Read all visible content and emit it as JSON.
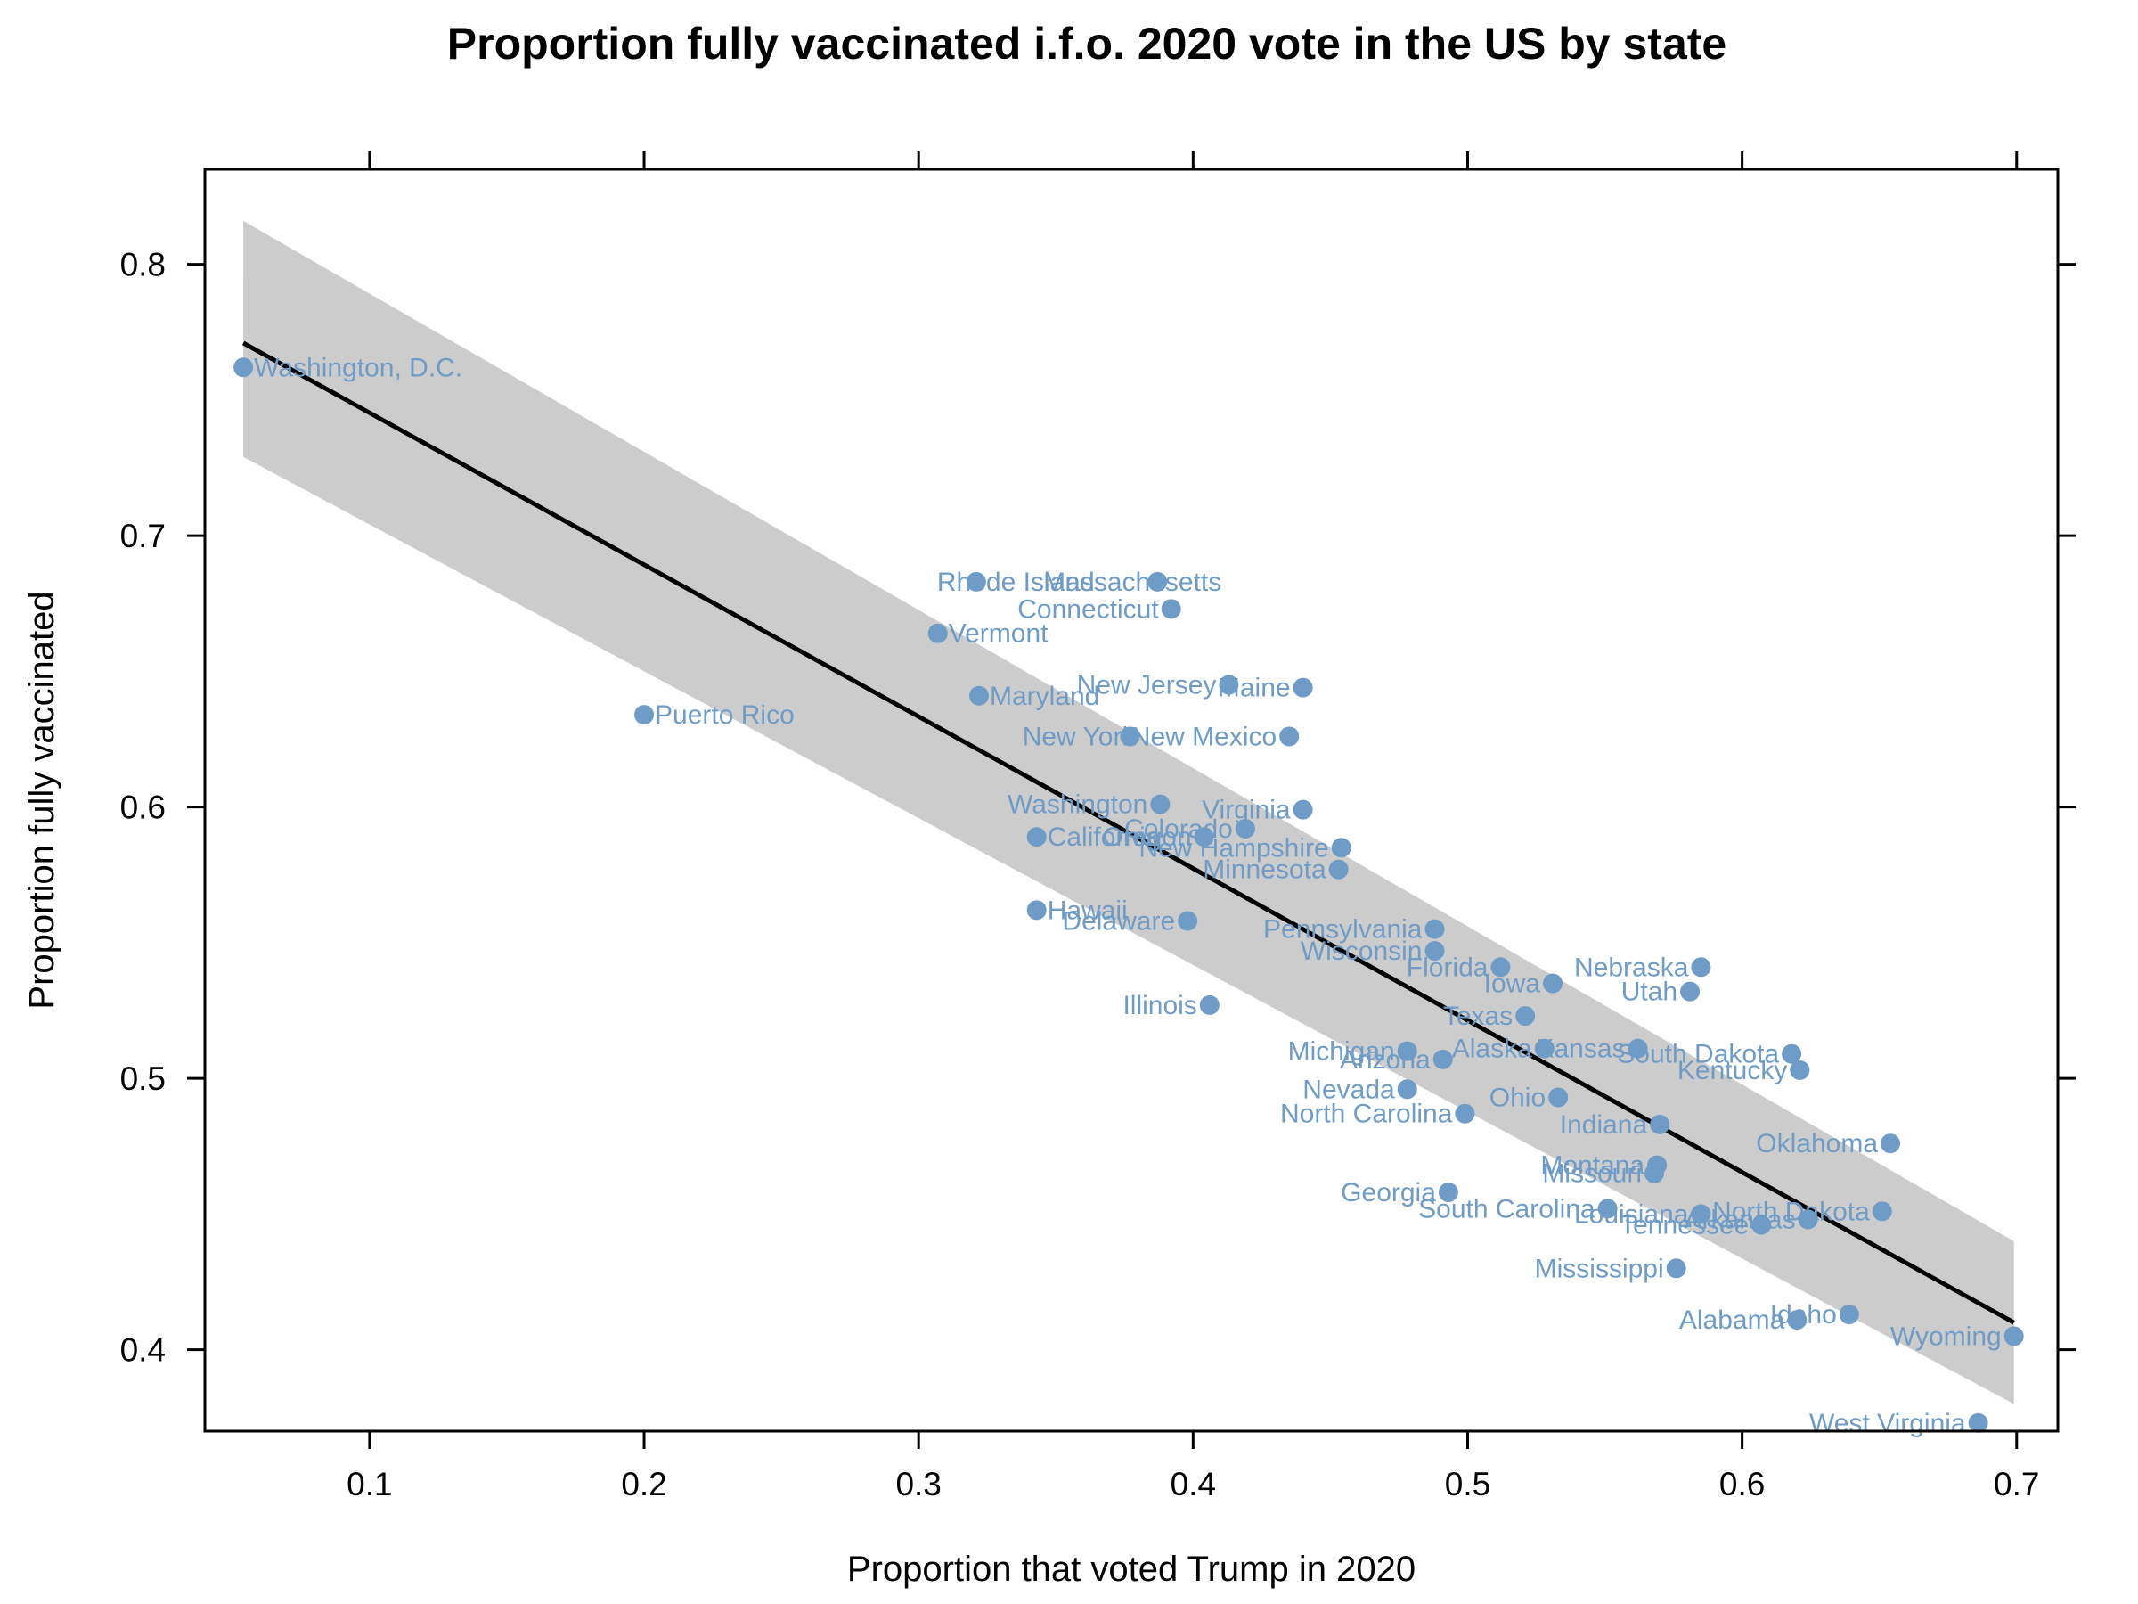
{
  "chart_data": {
    "type": "scatter",
    "title": "Proportion fully vaccinated i.f.o. 2020 vote in the US by state",
    "xlabel": "Proportion that voted Trump in 2020",
    "ylabel": "Proportion fully vaccinated",
    "xlim": [
      0.04,
      0.715
    ],
    "ylim": [
      0.37,
      0.835
    ],
    "x_ticks": [
      "0.1",
      "0.2",
      "0.3",
      "0.4",
      "0.5",
      "0.6",
      "0.7"
    ],
    "y_ticks": [
      "0.4",
      "0.5",
      "0.6",
      "0.7",
      "0.8"
    ],
    "grid": false,
    "legend": "none",
    "point_color": "#6f9cc7",
    "label_color": "#6f9cc7",
    "band_color": "#cccccc",
    "line_color": "#000000",
    "regression_line": {
      "x": [
        0.054,
        0.699
      ],
      "y": [
        0.771,
        0.41
      ]
    },
    "confidence_band": {
      "x": [
        0.054,
        0.699
      ],
      "upper": [
        0.816,
        0.44
      ],
      "lower": [
        0.729,
        0.38
      ]
    },
    "points": [
      {
        "name": "Washington, D.C.",
        "x": 0.054,
        "y": 0.762,
        "anchor": "start",
        "dx": 12,
        "dy": 0
      },
      {
        "name": "Puerto Rico",
        "x": 0.2,
        "y": 0.634,
        "anchor": "start",
        "dx": 12,
        "dy": 0
      },
      {
        "name": "Vermont",
        "x": 0.307,
        "y": 0.664,
        "anchor": "start",
        "dx": 12,
        "dy": 0
      },
      {
        "name": "Rhode Island",
        "x": 0.321,
        "y": 0.683,
        "anchor": "start",
        "dx": -44,
        "dy": 0
      },
      {
        "name": "Massachusetts",
        "x": 0.387,
        "y": 0.683,
        "anchor": "end",
        "dx": 72,
        "dy": 0
      },
      {
        "name": "Connecticut",
        "x": 0.392,
        "y": 0.673,
        "anchor": "end",
        "dx": -14,
        "dy": 0
      },
      {
        "name": "Maryland",
        "x": 0.322,
        "y": 0.641,
        "anchor": "start",
        "dx": 12,
        "dy": 0
      },
      {
        "name": "New Jersey",
        "x": 0.413,
        "y": 0.645,
        "anchor": "end",
        "dx": -14,
        "dy": 0
      },
      {
        "name": "Maine",
        "x": 0.44,
        "y": 0.644,
        "anchor": "end",
        "dx": -14,
        "dy": 0
      },
      {
        "name": "New York",
        "x": 0.377,
        "y": 0.626,
        "anchor": "end",
        "dx": 6,
        "dy": 0
      },
      {
        "name": "New Mexico",
        "x": 0.435,
        "y": 0.626,
        "anchor": "end",
        "dx": -14,
        "dy": 0
      },
      {
        "name": "Washington",
        "x": 0.388,
        "y": 0.601,
        "anchor": "end",
        "dx": -14,
        "dy": 0
      },
      {
        "name": "Virginia",
        "x": 0.44,
        "y": 0.599,
        "anchor": "end",
        "dx": -14,
        "dy": 0
      },
      {
        "name": "Colorado",
        "x": 0.419,
        "y": 0.592,
        "anchor": "end",
        "dx": -14,
        "dy": 0
      },
      {
        "name": "California",
        "x": 0.343,
        "y": 0.589,
        "anchor": "start",
        "dx": 12,
        "dy": 0
      },
      {
        "name": "Oregon",
        "x": 0.404,
        "y": 0.589,
        "anchor": "end",
        "dx": -14,
        "dy": 0
      },
      {
        "name": "New Hampshire",
        "x": 0.454,
        "y": 0.585,
        "anchor": "end",
        "dx": -14,
        "dy": 0
      },
      {
        "name": "Minnesota",
        "x": 0.453,
        "y": 0.577,
        "anchor": "end",
        "dx": -14,
        "dy": 0
      },
      {
        "name": "Hawaii",
        "x": 0.343,
        "y": 0.562,
        "anchor": "start",
        "dx": 12,
        "dy": 0
      },
      {
        "name": "Delaware",
        "x": 0.398,
        "y": 0.558,
        "anchor": "end",
        "dx": -14,
        "dy": 0
      },
      {
        "name": "Pennsylvania",
        "x": 0.488,
        "y": 0.555,
        "anchor": "end",
        "dx": -14,
        "dy": 0
      },
      {
        "name": "Wisconsin",
        "x": 0.488,
        "y": 0.547,
        "anchor": "end",
        "dx": -14,
        "dy": 0
      },
      {
        "name": "Florida",
        "x": 0.512,
        "y": 0.541,
        "anchor": "end",
        "dx": -14,
        "dy": 0
      },
      {
        "name": "Nebraska",
        "x": 0.585,
        "y": 0.541,
        "anchor": "end",
        "dx": -14,
        "dy": 0
      },
      {
        "name": "Iowa",
        "x": 0.531,
        "y": 0.535,
        "anchor": "end",
        "dx": -14,
        "dy": 0
      },
      {
        "name": "Utah",
        "x": 0.581,
        "y": 0.532,
        "anchor": "end",
        "dx": -14,
        "dy": 0
      },
      {
        "name": "Illinois",
        "x": 0.406,
        "y": 0.527,
        "anchor": "end",
        "dx": -14,
        "dy": 0
      },
      {
        "name": "Texas",
        "x": 0.521,
        "y": 0.523,
        "anchor": "end",
        "dx": -14,
        "dy": 0
      },
      {
        "name": "Michigan",
        "x": 0.478,
        "y": 0.51,
        "anchor": "end",
        "dx": -14,
        "dy": 0
      },
      {
        "name": "Alaska",
        "x": 0.528,
        "y": 0.511,
        "anchor": "end",
        "dx": -14,
        "dy": 0
      },
      {
        "name": "Kansas",
        "x": 0.562,
        "y": 0.511,
        "anchor": "end",
        "dx": -14,
        "dy": 0
      },
      {
        "name": "South Dakota",
        "x": 0.618,
        "y": 0.509,
        "anchor": "end",
        "dx": -14,
        "dy": 0
      },
      {
        "name": "Arizona",
        "x": 0.491,
        "y": 0.507,
        "anchor": "end",
        "dx": -14,
        "dy": 0
      },
      {
        "name": "Kentucky",
        "x": 0.621,
        "y": 0.503,
        "anchor": "end",
        "dx": -14,
        "dy": 0
      },
      {
        "name": "Nevada",
        "x": 0.478,
        "y": 0.496,
        "anchor": "end",
        "dx": -14,
        "dy": 0
      },
      {
        "name": "Ohio",
        "x": 0.533,
        "y": 0.493,
        "anchor": "end",
        "dx": -14,
        "dy": 0
      },
      {
        "name": "North Carolina",
        "x": 0.499,
        "y": 0.487,
        "anchor": "end",
        "dx": -14,
        "dy": 0
      },
      {
        "name": "Indiana",
        "x": 0.57,
        "y": 0.483,
        "anchor": "end",
        "dx": -14,
        "dy": 0
      },
      {
        "name": "Oklahoma",
        "x": 0.654,
        "y": 0.476,
        "anchor": "end",
        "dx": -14,
        "dy": 0
      },
      {
        "name": "Montana",
        "x": 0.569,
        "y": 0.468,
        "anchor": "end",
        "dx": -14,
        "dy": 0
      },
      {
        "name": "Missouri",
        "x": 0.568,
        "y": 0.465,
        "anchor": "end",
        "dx": -14,
        "dy": 0
      },
      {
        "name": "Georgia",
        "x": 0.493,
        "y": 0.458,
        "anchor": "end",
        "dx": -14,
        "dy": 0
      },
      {
        "name": "South Carolina",
        "x": 0.551,
        "y": 0.452,
        "anchor": "end",
        "dx": -14,
        "dy": 0
      },
      {
        "name": "Louisiana",
        "x": 0.585,
        "y": 0.45,
        "anchor": "end",
        "dx": -14,
        "dy": 0
      },
      {
        "name": "North Dakota",
        "x": 0.651,
        "y": 0.451,
        "anchor": "end",
        "dx": -14,
        "dy": 0
      },
      {
        "name": "Arkansas",
        "x": 0.624,
        "y": 0.448,
        "anchor": "end",
        "dx": -14,
        "dy": 0
      },
      {
        "name": "Tennessee",
        "x": 0.607,
        "y": 0.446,
        "anchor": "end",
        "dx": -14,
        "dy": 0
      },
      {
        "name": "Mississippi",
        "x": 0.576,
        "y": 0.43,
        "anchor": "end",
        "dx": -14,
        "dy": 0
      },
      {
        "name": "Idaho",
        "x": 0.639,
        "y": 0.413,
        "anchor": "end",
        "dx": -14,
        "dy": 0
      },
      {
        "name": "Alabama",
        "x": 0.62,
        "y": 0.411,
        "anchor": "end",
        "dx": -14,
        "dy": 0
      },
      {
        "name": "Wyoming",
        "x": 0.699,
        "y": 0.405,
        "anchor": "end",
        "dx": -14,
        "dy": 0
      },
      {
        "name": "West Virginia",
        "x": 0.686,
        "y": 0.373,
        "anchor": "end",
        "dx": -14,
        "dy": 0
      }
    ]
  }
}
